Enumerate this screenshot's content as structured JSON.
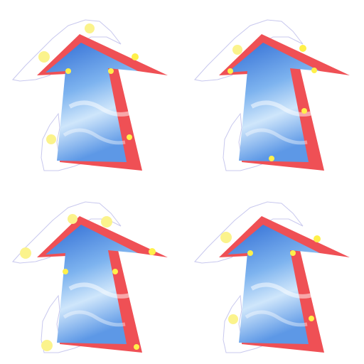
{
  "canvas": {
    "background": "#ffffff"
  },
  "colors": {
    "red_border": "#ef5055",
    "blue_dark": "#2f6bd4",
    "blue_mid": "#6aa3ea",
    "blue_light": "#cfe6fb",
    "snow_outline": "#c8c8ee",
    "dot_yellow": "#fff04a",
    "dot_yellow_light": "#fbf38c"
  },
  "icon": "up-arrow-snow-icon",
  "tiles": [
    {
      "name": "arrow-tile-top-left",
      "variant": 0
    },
    {
      "name": "arrow-tile-top-right",
      "variant": 1
    },
    {
      "name": "arrow-tile-bottom-left",
      "variant": 2
    },
    {
      "name": "arrow-tile-bottom-right",
      "variant": 3
    }
  ]
}
